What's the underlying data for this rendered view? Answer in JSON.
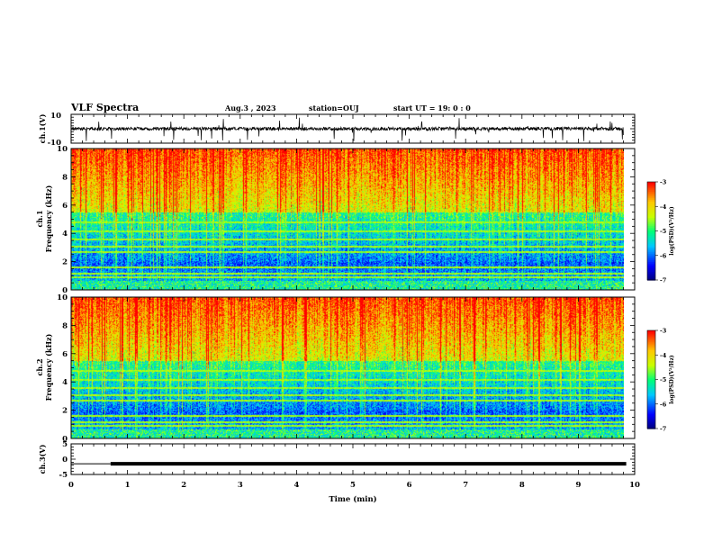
{
  "header": {
    "title": "VLF Spectra",
    "date": "Aug.3  , 2023",
    "station": "station=OUJ",
    "start": "start  UT  =   19: 0  : 0"
  },
  "chart_data": [
    {
      "id": "ch1_waveform",
      "type": "line",
      "ylabel": "ch.1(V)",
      "ylim": [
        -10,
        10
      ],
      "yticks": [
        "10",
        "-10"
      ],
      "xlim": [
        0,
        10
      ],
      "baseline_value": 0
    },
    {
      "id": "ch1_spectrogram",
      "type": "heatmap",
      "ylabel": "ch.1\nFrequency (kHz)",
      "ylim": [
        0,
        10
      ],
      "yticks": [
        "0",
        "2",
        "4",
        "6",
        "8",
        "10"
      ],
      "xlim": [
        0,
        10
      ],
      "colorbar": {
        "label": "log(PSD)(V²/Hz)",
        "range": [
          -7,
          -3
        ],
        "ticks": [
          "-3",
          "-4",
          "-5",
          "-6",
          "-7"
        ]
      }
    },
    {
      "id": "ch2_spectrogram",
      "type": "heatmap",
      "ylabel": "ch.2\nFrequency (kHz)",
      "ylim": [
        0,
        10
      ],
      "yticks": [
        "0",
        "2",
        "4",
        "6",
        "8",
        "10"
      ],
      "xlim": [
        0,
        10
      ],
      "colorbar": {
        "label": "log(PSD)(V²/Hz)",
        "range": [
          -7,
          -3
        ],
        "ticks": [
          "-3",
          "-4",
          "-5",
          "-6",
          "-7"
        ]
      }
    },
    {
      "id": "ch3_line",
      "type": "line",
      "ylabel": "ch.3(V)",
      "ylim": [
        -5,
        5
      ],
      "yticks": [
        "5",
        "0",
        "-5"
      ],
      "xlim": [
        0,
        10
      ],
      "xlabel": "Time (min)",
      "xticks": [
        "0",
        "1",
        "2",
        "3",
        "4",
        "5",
        "6",
        "7",
        "8",
        "9",
        "10"
      ],
      "x": [
        0,
        0.7,
        0.7,
        9.85
      ],
      "y": [
        -1.5,
        -1.5,
        -1.5,
        -1.5
      ]
    }
  ]
}
